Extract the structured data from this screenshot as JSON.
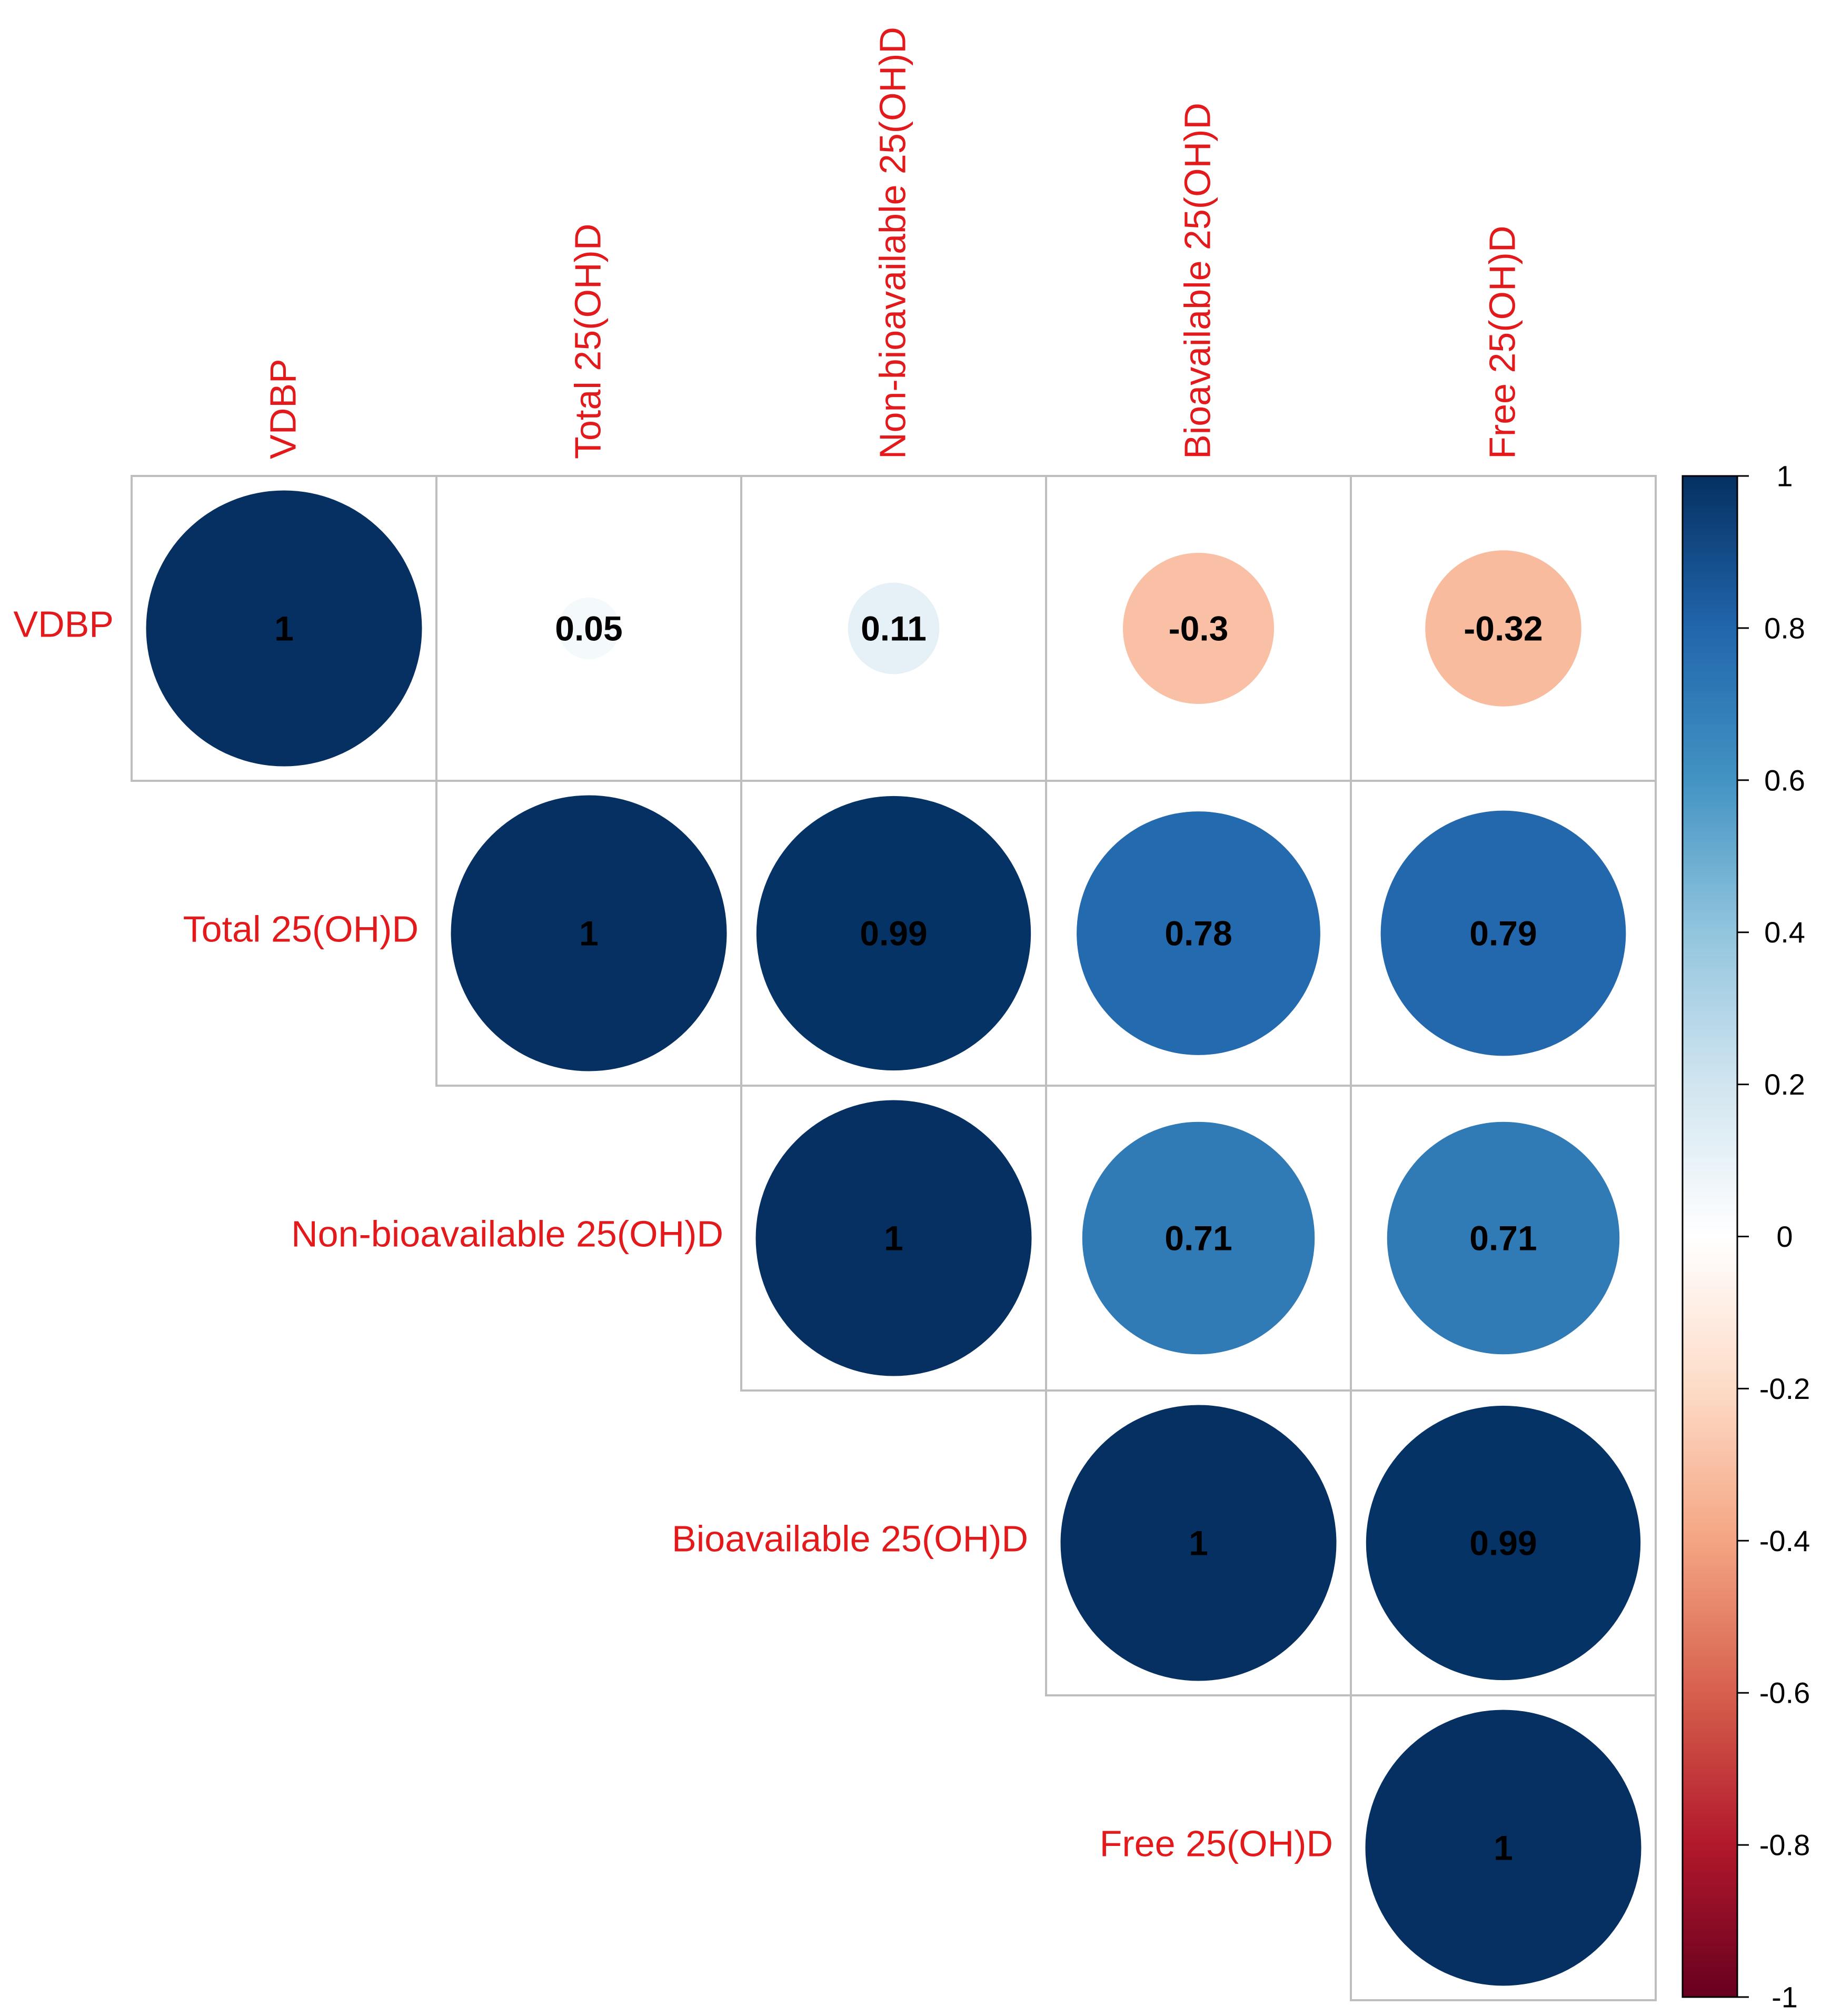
{
  "chart_data": {
    "type": "heatmap",
    "variant": "correlogram-upper-triangle-circles",
    "variables": [
      "VDBP",
      "Total 25(OH)D",
      "Non-bioavailable 25(OH)D",
      "Bioavailable 25(OH)D",
      "Free 25(OH)D"
    ],
    "cells": [
      {
        "row": 0,
        "col": 0,
        "value": 1,
        "label": "1"
      },
      {
        "row": 0,
        "col": 1,
        "value": 0.05,
        "label": "0.05"
      },
      {
        "row": 0,
        "col": 2,
        "value": 0.11,
        "label": "0.11"
      },
      {
        "row": 0,
        "col": 3,
        "value": -0.3,
        "label": "-0.3"
      },
      {
        "row": 0,
        "col": 4,
        "value": -0.32,
        "label": "-0.32"
      },
      {
        "row": 1,
        "col": 1,
        "value": 1,
        "label": "1"
      },
      {
        "row": 1,
        "col": 2,
        "value": 0.99,
        "label": "0.99"
      },
      {
        "row": 1,
        "col": 3,
        "value": 0.78,
        "label": "0.78"
      },
      {
        "row": 1,
        "col": 4,
        "value": 0.79,
        "label": "0.79"
      },
      {
        "row": 2,
        "col": 2,
        "value": 1,
        "label": "1"
      },
      {
        "row": 2,
        "col": 3,
        "value": 0.71,
        "label": "0.71"
      },
      {
        "row": 2,
        "col": 4,
        "value": 0.71,
        "label": "0.71"
      },
      {
        "row": 3,
        "col": 3,
        "value": 1,
        "label": "1"
      },
      {
        "row": 3,
        "col": 4,
        "value": 0.99,
        "label": "0.99"
      },
      {
        "row": 4,
        "col": 4,
        "value": 1,
        "label": "1"
      }
    ],
    "colorbar": {
      "range": [
        -1,
        1
      ],
      "ticks": [
        {
          "value": 1,
          "label": "1"
        },
        {
          "value": 0.8,
          "label": "0.8"
        },
        {
          "value": 0.6,
          "label": "0.6"
        },
        {
          "value": 0.4,
          "label": "0.4"
        },
        {
          "value": 0.2,
          "label": "0.2"
        },
        {
          "value": 0,
          "label": "0"
        },
        {
          "value": -0.2,
          "label": "-0.2"
        },
        {
          "value": -0.4,
          "label": "-0.4"
        },
        {
          "value": -0.6,
          "label": "-0.6"
        },
        {
          "value": -0.8,
          "label": "-0.8"
        },
        {
          "value": -1,
          "label": "-1"
        }
      ],
      "palette": [
        "#67001F",
        "#B2182B",
        "#D6604D",
        "#F4A582",
        "#FDDBC7",
        "#FFFFFF",
        "#D1E5F0",
        "#92C5DE",
        "#4393C3",
        "#2166AC",
        "#053061"
      ]
    },
    "colors": {
      "label_text": "#E31A1C",
      "value_text": "#000000",
      "grid": "#BEBEBE",
      "legend_text": "#000000"
    }
  }
}
